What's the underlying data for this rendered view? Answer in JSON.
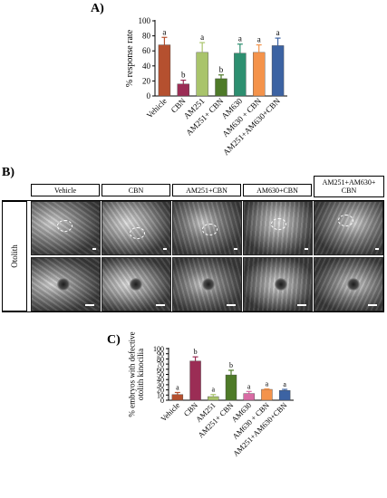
{
  "panels": {
    "a_label": "A)",
    "b_label": "B)",
    "c_label": "C)"
  },
  "panel_b": {
    "columns": [
      "Vehicle",
      "CBN",
      "AM251+CBN",
      "AM630+CBN",
      "AM251+AM630+ CBN"
    ],
    "row_label": "Otolith"
  },
  "colors": {
    "vehicle": "#b5502f",
    "cbn": "#9b2d55",
    "am251": "#a9c46b",
    "am251_cbn": "#4e7a28",
    "am630": "#2d8f70",
    "am630_cbn": "#f4934b",
    "am251_am630_cbn": "#3c63a3",
    "am630_c": "#d96aa4"
  },
  "chart_data": [
    {
      "type": "bar",
      "panel": "A)",
      "categories": [
        "Vehicle",
        "CBN",
        "AM251",
        "AM251+ CBN",
        "AM630",
        "AM630 + CBN",
        "AM251+AM630+CBN"
      ],
      "values": [
        68,
        16,
        58,
        23,
        57,
        58,
        67
      ],
      "errors": [
        10,
        5,
        13,
        5,
        12,
        10,
        10
      ],
      "sig_letters": [
        "a",
        "b",
        "a",
        "b",
        "a",
        "a",
        "a"
      ],
      "ylabel": "% response rate",
      "ylim": [
        0,
        100
      ],
      "yticks": [
        0,
        20,
        40,
        60,
        80,
        100
      ]
    },
    {
      "type": "bar",
      "panel": "C)",
      "categories": [
        "Vehicle",
        "CBN",
        "AM251",
        "AM251+ CBN",
        "AM630",
        "AM630 + CBN",
        "AM251+AM630+CBN"
      ],
      "values": [
        11,
        76,
        7,
        49,
        13,
        21,
        19
      ],
      "errors": [
        4,
        8,
        4,
        9,
        4,
        1,
        2
      ],
      "sig_letters": [
        "a",
        "b",
        "a",
        "b",
        "a",
        "a",
        "a"
      ],
      "ylabel": "% embryos with defective otolith kinocilia",
      "ylim": [
        0,
        100
      ],
      "yticks": [
        0,
        10,
        20,
        30,
        40,
        50,
        60,
        70,
        80,
        90,
        100
      ]
    }
  ]
}
